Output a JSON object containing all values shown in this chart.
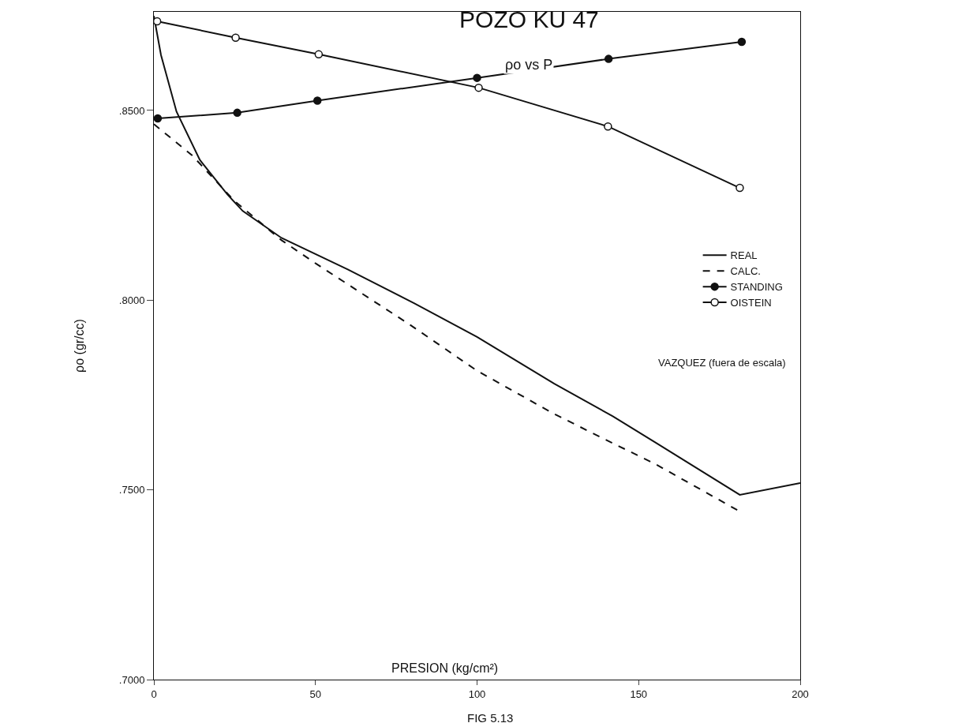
{
  "chart_data": {
    "type": "line",
    "title": "POZO KU 47",
    "subtitle": "ρo vs P",
    "xlabel": "PRESION (kg/cm²)",
    "ylabel": "ρo (gr/cc)",
    "annotations": [
      "VAZQUEZ (fuera de escala)",
      "FIG 5.13"
    ],
    "xlim": [
      0,
      200
    ],
    "xticks": [
      0,
      50,
      100,
      150,
      200
    ],
    "ylim": [
      0.7,
      0.876
    ],
    "yticks": [
      {
        "value": 0.7,
        "label": ".7000"
      },
      {
        "value": 0.75,
        "label": ".7500"
      },
      {
        "value": 0.8,
        "label": ".8000"
      },
      {
        "value": 0.85,
        "label": ".8500"
      }
    ],
    "grid": false,
    "legend": "right",
    "series": [
      {
        "name": "REAL",
        "color": "#111111",
        "line_style": "solid",
        "marker": "none",
        "x": [
          0,
          2.2,
          7,
          14.2,
          22.7,
          27.5,
          39.5,
          60,
          80.5,
          100,
          123.9,
          142,
          155.2,
          181.3,
          200
        ],
        "values": [
          0.8749,
          0.8646,
          0.8497,
          0.837,
          0.8279,
          0.8235,
          0.8164,
          0.8081,
          0.7992,
          0.7903,
          0.778,
          0.7694,
          0.7625,
          0.7487,
          0.7518
        ]
      },
      {
        "name": "CALC.",
        "color": "#111111",
        "line_style": "dashed",
        "marker": "none",
        "x": [
          0,
          11.8,
          25,
          39.5,
          50.4,
          79.3,
          100,
          123.9,
          142,
          155.2,
          180.5
        ],
        "values": [
          0.8464,
          0.8382,
          0.8261,
          0.8158,
          0.8095,
          0.7935,
          0.7814,
          0.77,
          0.7623,
          0.7568,
          0.7447
        ]
      },
      {
        "name": "STANDING",
        "color": "#111111",
        "line_style": "solid",
        "marker": "circle",
        "x": [
          1.2,
          25.8,
          50.6,
          100,
          140.7,
          181.9
        ],
        "values": [
          0.8479,
          0.8494,
          0.8526,
          0.8586,
          0.8636,
          0.8681
        ]
      },
      {
        "name": "OISTEIN",
        "color": "#111111",
        "line_style": "solid",
        "marker": "circle-open",
        "x": [
          1,
          25.3,
          51,
          100.5,
          140.5,
          181.3
        ],
        "values": [
          0.8735,
          0.8692,
          0.8648,
          0.856,
          0.8458,
          0.8296
        ]
      }
    ]
  }
}
